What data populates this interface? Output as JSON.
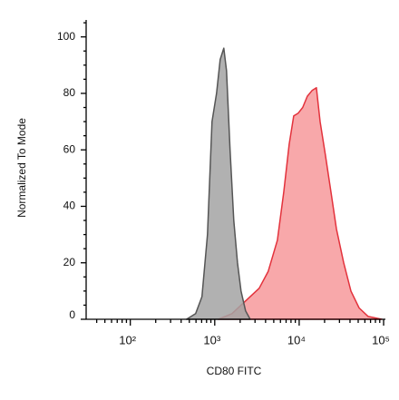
{
  "chart_data": {
    "type": "histogram-overlay",
    "xlabel": "CD80 FITC",
    "ylabel": "Normalized To Mode",
    "xscale": "log",
    "xlim": [
      30,
      105000
    ],
    "ylim": [
      0,
      106
    ],
    "xticks": [
      {
        "value": 100,
        "label": "10²"
      },
      {
        "value": 1000,
        "label": "10³"
      },
      {
        "value": 10000,
        "label": "10⁴"
      },
      {
        "value": 100000,
        "label": "10⁵"
      }
    ],
    "x_minor_ticks": [
      40,
      50,
      60,
      70,
      80,
      90,
      200,
      300,
      400,
      500,
      600,
      700,
      800,
      900,
      2000,
      3000,
      4000,
      5000,
      6000,
      7000,
      8000,
      9000,
      20000,
      30000,
      40000,
      50000,
      60000,
      70000,
      80000,
      90000
    ],
    "yticks": [
      0,
      20,
      40,
      60,
      80,
      100
    ],
    "y_minor_ticks": [
      5,
      10,
      15,
      25,
      30,
      35,
      45,
      50,
      55,
      65,
      70,
      75,
      85,
      90,
      95,
      105
    ],
    "series": [
      {
        "color": "#e3323c",
        "fill": "#f8a3a5",
        "x": [
          1100,
          1600,
          2050,
          2630,
          3360,
          4300,
          5520,
          6560,
          7620,
          8610,
          9750,
          11000,
          12500,
          14200,
          16000,
          17700,
          20500,
          23800,
          27600,
          33700,
          41000,
          51300,
          65700,
          95100
        ],
        "values": [
          0,
          2,
          5,
          8,
          11,
          17,
          28,
          45,
          62,
          72,
          73,
          75,
          79,
          81,
          82,
          70,
          58,
          45,
          32,
          20,
          10,
          4,
          1,
          0
        ]
      },
      {
        "color": "#555555",
        "fill": "#a3a3a3",
        "x": [
          464,
          594,
          706,
          820,
          929,
          1050,
          1160,
          1280,
          1380,
          1520,
          1680,
          1860,
          2050,
          2320,
          2630
        ],
        "values": [
          0,
          2,
          8,
          30,
          70,
          80,
          92,
          96,
          88,
          60,
          35,
          20,
          10,
          3,
          0
        ]
      }
    ]
  }
}
